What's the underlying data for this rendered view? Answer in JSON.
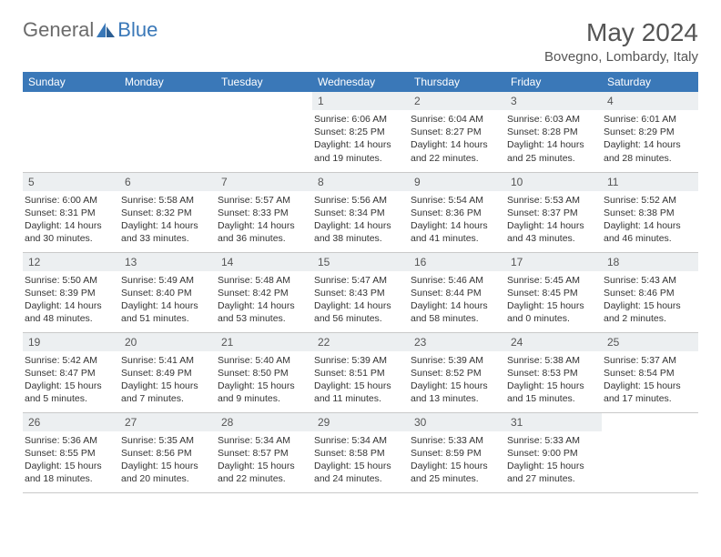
{
  "brand": {
    "word1": "General",
    "word2": "Blue"
  },
  "title": "May 2024",
  "location": "Bovegno, Lombardy, Italy",
  "header_bg": "#3a78b8",
  "daynum_bg": "#eceff1",
  "days": [
    "Sunday",
    "Monday",
    "Tuesday",
    "Wednesday",
    "Thursday",
    "Friday",
    "Saturday"
  ],
  "weeks": [
    [
      {
        "num": "",
        "lines": []
      },
      {
        "num": "",
        "lines": []
      },
      {
        "num": "",
        "lines": []
      },
      {
        "num": "1",
        "lines": [
          "Sunrise: 6:06 AM",
          "Sunset: 8:25 PM",
          "Daylight: 14 hours",
          "and 19 minutes."
        ]
      },
      {
        "num": "2",
        "lines": [
          "Sunrise: 6:04 AM",
          "Sunset: 8:27 PM",
          "Daylight: 14 hours",
          "and 22 minutes."
        ]
      },
      {
        "num": "3",
        "lines": [
          "Sunrise: 6:03 AM",
          "Sunset: 8:28 PM",
          "Daylight: 14 hours",
          "and 25 minutes."
        ]
      },
      {
        "num": "4",
        "lines": [
          "Sunrise: 6:01 AM",
          "Sunset: 8:29 PM",
          "Daylight: 14 hours",
          "and 28 minutes."
        ]
      }
    ],
    [
      {
        "num": "5",
        "lines": [
          "Sunrise: 6:00 AM",
          "Sunset: 8:31 PM",
          "Daylight: 14 hours",
          "and 30 minutes."
        ]
      },
      {
        "num": "6",
        "lines": [
          "Sunrise: 5:58 AM",
          "Sunset: 8:32 PM",
          "Daylight: 14 hours",
          "and 33 minutes."
        ]
      },
      {
        "num": "7",
        "lines": [
          "Sunrise: 5:57 AM",
          "Sunset: 8:33 PM",
          "Daylight: 14 hours",
          "and 36 minutes."
        ]
      },
      {
        "num": "8",
        "lines": [
          "Sunrise: 5:56 AM",
          "Sunset: 8:34 PM",
          "Daylight: 14 hours",
          "and 38 minutes."
        ]
      },
      {
        "num": "9",
        "lines": [
          "Sunrise: 5:54 AM",
          "Sunset: 8:36 PM",
          "Daylight: 14 hours",
          "and 41 minutes."
        ]
      },
      {
        "num": "10",
        "lines": [
          "Sunrise: 5:53 AM",
          "Sunset: 8:37 PM",
          "Daylight: 14 hours",
          "and 43 minutes."
        ]
      },
      {
        "num": "11",
        "lines": [
          "Sunrise: 5:52 AM",
          "Sunset: 8:38 PM",
          "Daylight: 14 hours",
          "and 46 minutes."
        ]
      }
    ],
    [
      {
        "num": "12",
        "lines": [
          "Sunrise: 5:50 AM",
          "Sunset: 8:39 PM",
          "Daylight: 14 hours",
          "and 48 minutes."
        ]
      },
      {
        "num": "13",
        "lines": [
          "Sunrise: 5:49 AM",
          "Sunset: 8:40 PM",
          "Daylight: 14 hours",
          "and 51 minutes."
        ]
      },
      {
        "num": "14",
        "lines": [
          "Sunrise: 5:48 AM",
          "Sunset: 8:42 PM",
          "Daylight: 14 hours",
          "and 53 minutes."
        ]
      },
      {
        "num": "15",
        "lines": [
          "Sunrise: 5:47 AM",
          "Sunset: 8:43 PM",
          "Daylight: 14 hours",
          "and 56 minutes."
        ]
      },
      {
        "num": "16",
        "lines": [
          "Sunrise: 5:46 AM",
          "Sunset: 8:44 PM",
          "Daylight: 14 hours",
          "and 58 minutes."
        ]
      },
      {
        "num": "17",
        "lines": [
          "Sunrise: 5:45 AM",
          "Sunset: 8:45 PM",
          "Daylight: 15 hours",
          "and 0 minutes."
        ]
      },
      {
        "num": "18",
        "lines": [
          "Sunrise: 5:43 AM",
          "Sunset: 8:46 PM",
          "Daylight: 15 hours",
          "and 2 minutes."
        ]
      }
    ],
    [
      {
        "num": "19",
        "lines": [
          "Sunrise: 5:42 AM",
          "Sunset: 8:47 PM",
          "Daylight: 15 hours",
          "and 5 minutes."
        ]
      },
      {
        "num": "20",
        "lines": [
          "Sunrise: 5:41 AM",
          "Sunset: 8:49 PM",
          "Daylight: 15 hours",
          "and 7 minutes."
        ]
      },
      {
        "num": "21",
        "lines": [
          "Sunrise: 5:40 AM",
          "Sunset: 8:50 PM",
          "Daylight: 15 hours",
          "and 9 minutes."
        ]
      },
      {
        "num": "22",
        "lines": [
          "Sunrise: 5:39 AM",
          "Sunset: 8:51 PM",
          "Daylight: 15 hours",
          "and 11 minutes."
        ]
      },
      {
        "num": "23",
        "lines": [
          "Sunrise: 5:39 AM",
          "Sunset: 8:52 PM",
          "Daylight: 15 hours",
          "and 13 minutes."
        ]
      },
      {
        "num": "24",
        "lines": [
          "Sunrise: 5:38 AM",
          "Sunset: 8:53 PM",
          "Daylight: 15 hours",
          "and 15 minutes."
        ]
      },
      {
        "num": "25",
        "lines": [
          "Sunrise: 5:37 AM",
          "Sunset: 8:54 PM",
          "Daylight: 15 hours",
          "and 17 minutes."
        ]
      }
    ],
    [
      {
        "num": "26",
        "lines": [
          "Sunrise: 5:36 AM",
          "Sunset: 8:55 PM",
          "Daylight: 15 hours",
          "and 18 minutes."
        ]
      },
      {
        "num": "27",
        "lines": [
          "Sunrise: 5:35 AM",
          "Sunset: 8:56 PM",
          "Daylight: 15 hours",
          "and 20 minutes."
        ]
      },
      {
        "num": "28",
        "lines": [
          "Sunrise: 5:34 AM",
          "Sunset: 8:57 PM",
          "Daylight: 15 hours",
          "and 22 minutes."
        ]
      },
      {
        "num": "29",
        "lines": [
          "Sunrise: 5:34 AM",
          "Sunset: 8:58 PM",
          "Daylight: 15 hours",
          "and 24 minutes."
        ]
      },
      {
        "num": "30",
        "lines": [
          "Sunrise: 5:33 AM",
          "Sunset: 8:59 PM",
          "Daylight: 15 hours",
          "and 25 minutes."
        ]
      },
      {
        "num": "31",
        "lines": [
          "Sunrise: 5:33 AM",
          "Sunset: 9:00 PM",
          "Daylight: 15 hours",
          "and 27 minutes."
        ]
      },
      {
        "num": "",
        "lines": []
      }
    ]
  ]
}
